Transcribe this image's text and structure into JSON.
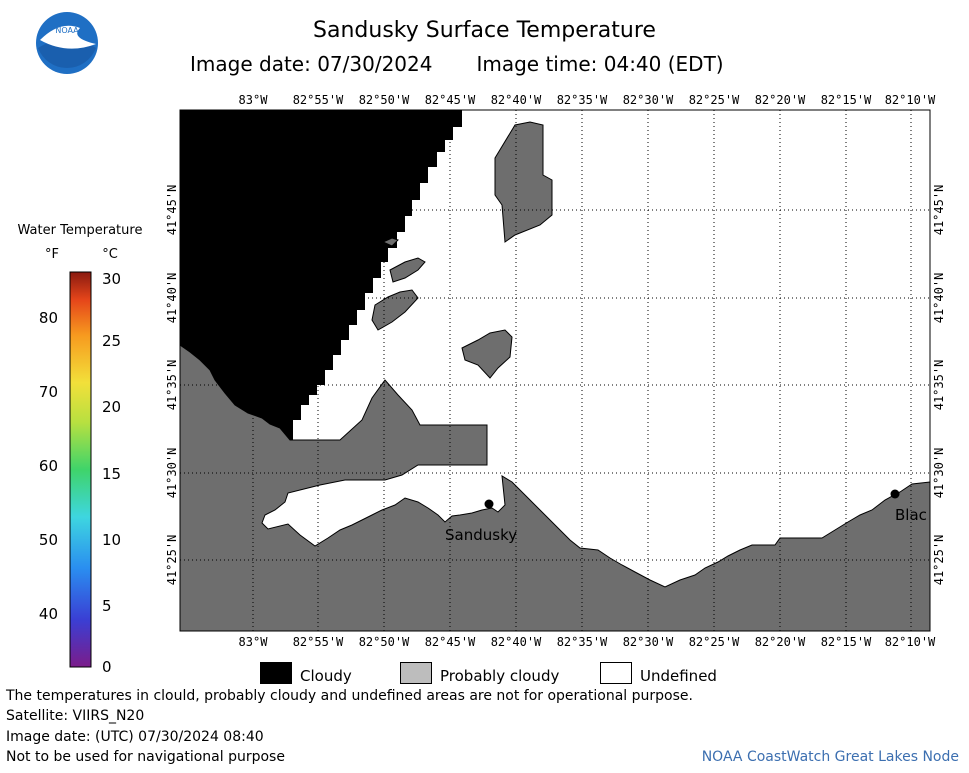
{
  "header": {
    "title": "Sandusky Surface Temperature",
    "image_date_label": "Image date: 07/30/2024",
    "image_time_label": "Image time: 04:40 (EDT)"
  },
  "logo": {
    "text": "NOAA"
  },
  "colorbar": {
    "title": "Water Temperature",
    "unit_f": "°F",
    "unit_c": "°C",
    "f_ticks": [
      "40",
      "50",
      "60",
      "70",
      "80"
    ],
    "c_ticks": [
      "0",
      "5",
      "10",
      "15",
      "20",
      "25",
      "30"
    ]
  },
  "map": {
    "top_lon_labels": [
      "83°W",
      "82°55'W",
      "82°50'W",
      "82°45'W",
      "82°40'W",
      "82°35'W",
      "82°30'W",
      "82°25'W",
      "82°20'W",
      "82°15'W",
      "82°10'W"
    ],
    "bottom_lon_labels": [
      "83°W",
      "82°55'W",
      "82°50'W",
      "82°45'W",
      "82°40'W",
      "82°35'W",
      "82°30'W",
      "82°25'W",
      "82°20'W",
      "82°15'W",
      "82°10'W"
    ],
    "lat_labels": [
      "41°45'N",
      "41°40'N",
      "41°35'N",
      "41°30'N",
      "41°25'N"
    ],
    "places": [
      {
        "name": "Sandusky"
      },
      {
        "name": "Blac"
      }
    ]
  },
  "legend": [
    {
      "label": "Cloudy",
      "color": "#000000"
    },
    {
      "label": "Probably cloudy",
      "color": "#bdbdbd"
    },
    {
      "label": "Undefined",
      "color": "#ffffff"
    }
  ],
  "footer": {
    "disclaimer": "The temperatures in clould, probably cloudy and undefined areas are not for operational purpose.",
    "satellite": "Satellite: VIIRS_N20",
    "utc_date": "Image date: (UTC) 07/30/2024  08:40",
    "nav_warning": "Not to be used for navigational purpose",
    "credit": "NOAA CoastWatch Great Lakes Node"
  },
  "colors": {
    "land": "#6e6e6e",
    "cloud": "#000000",
    "credit": "#3c6fb0"
  }
}
